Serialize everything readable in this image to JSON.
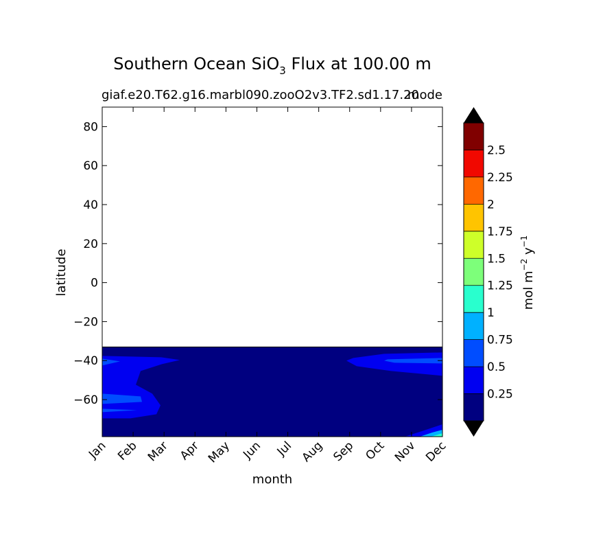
{
  "chart_data": {
    "type": "heatmap",
    "title": "Southern Ocean SiO",
    "title_sub": "3",
    "title_suffix": " Flux at 100.00 m",
    "subtitle_left": "giaf.e20.T62.g16.marbl090.zooO2v3.TF2.sd1.17.20",
    "subtitle_right": "mode",
    "xlabel": "month",
    "ylabel": "latitude",
    "x_ticks": [
      "Jan",
      "Feb",
      "Mar",
      "Apr",
      "May",
      "Jun",
      "Jul",
      "Aug",
      "Sep",
      "Oct",
      "Nov",
      "Dec"
    ],
    "y_ticks": [
      80,
      60,
      40,
      20,
      0,
      -20,
      -40,
      -60
    ],
    "y_tick_labels": [
      "80",
      "60",
      "40",
      "20",
      "0",
      "−20",
      "−40",
      "−60"
    ],
    "ylim": [
      -79,
      90
    ],
    "data_region_lat": [
      -79,
      -33
    ],
    "colorbar": {
      "label": "mol m",
      "label_exp1": "−2",
      "label_mid": " y",
      "label_exp2": "−1",
      "levels": [
        0.25,
        0.5,
        0.75,
        1,
        1.25,
        1.5,
        1.75,
        2,
        2.25,
        2.5
      ],
      "tick_labels": [
        "0.25",
        "0.5",
        "0.75",
        "1",
        "1.25",
        "1.5",
        "1.75",
        "2",
        "2.25",
        "2.5"
      ],
      "colors": [
        "#000080",
        "#0000f1",
        "#004dff",
        "#00b1ff",
        "#29ffce",
        "#7dff7a",
        "#ceff29",
        "#ffc400",
        "#ff6800",
        "#f10800",
        "#800000"
      ],
      "extend": "both",
      "extend_color": "#000000"
    }
  }
}
